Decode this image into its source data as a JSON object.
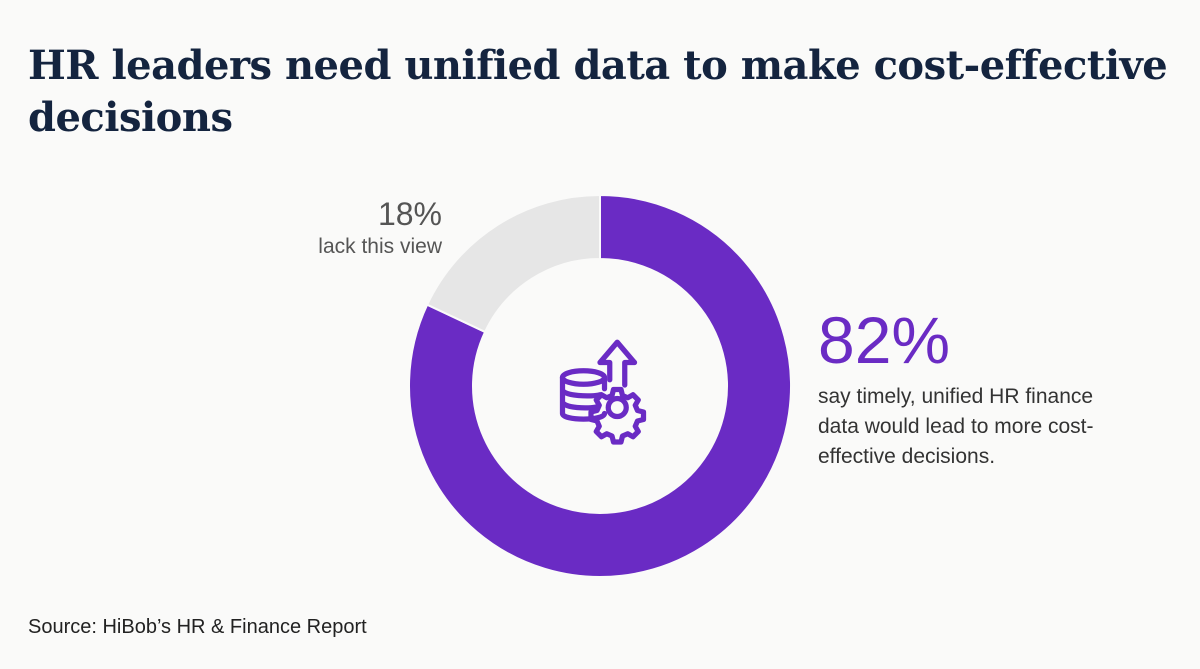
{
  "title": "HR leaders need unified data to make cost-effective decisions",
  "chart_data": {
    "type": "pie",
    "donut": true,
    "categories": [
      "say timely, unified HR finance data would lead to more cost-effective decisions.",
      "lack this view"
    ],
    "values": [
      82,
      18
    ],
    "value_labels": [
      "82%",
      "18%"
    ],
    "colors": [
      "#6a2bc4",
      "#e6e6e6"
    ]
  },
  "center_icon": "database-gear-arrow-up-icon",
  "source": "Source: HiBob’s HR & Finance Report"
}
